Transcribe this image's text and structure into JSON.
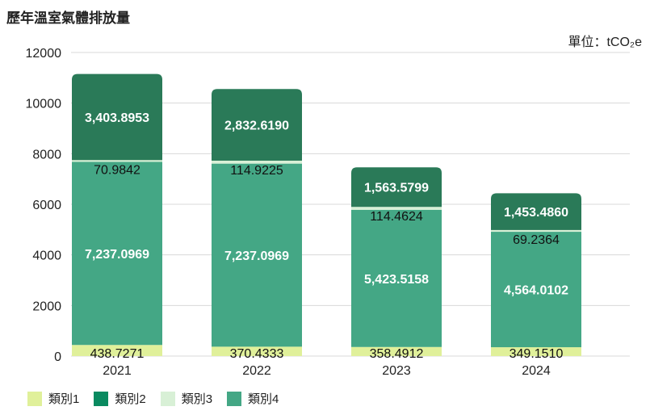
{
  "title": "歷年溫室氣體排放量",
  "unit_label": "單位：tCO₂e",
  "colors": {
    "類別1": "#e0f09a",
    "類別2": "#2a7a58",
    "類別2_legend": "#0a8a60",
    "類別3": "#d8f0d6",
    "類別4": "#44a785",
    "grid": "#d8d8d8",
    "label_light": "#ffffff",
    "label_dark": "#111111"
  },
  "legend": [
    {
      "name": "類別1",
      "color": "#e0f09a"
    },
    {
      "name": "類別2",
      "color": "#0a8a60"
    },
    {
      "name": "類別3",
      "color": "#d8f0d6"
    },
    {
      "name": "類別4",
      "color": "#44a785"
    }
  ],
  "chart_data": {
    "type": "bar",
    "stacked": true,
    "title": "歷年溫室氣體排放量",
    "xlabel": "",
    "ylabel": "",
    "ylim": [
      0,
      12000
    ],
    "yticks": [
      0,
      2000,
      4000,
      6000,
      8000,
      10000,
      12000
    ],
    "categories": [
      "2021",
      "2022",
      "2023",
      "2024"
    ],
    "series": [
      {
        "name": "類別1",
        "values": [
          438.7271,
          370.4333,
          358.4912,
          349.151
        ],
        "labels": [
          "438.7271",
          "370.4333",
          "358.4912",
          "349.1510"
        ]
      },
      {
        "name": "類別4",
        "values": [
          7237.0969,
          7237.0969,
          5423.5158,
          4564.0102
        ],
        "labels": [
          "7,237.0969",
          "7,237.0969",
          "5,423.5158",
          "4,564.0102"
        ]
      },
      {
        "name": "類別3",
        "values": [
          70.9842,
          114.9225,
          114.4624,
          69.2364
        ],
        "labels": [
          "70.9842",
          "114.9225",
          "114.4624",
          "69.2364"
        ]
      },
      {
        "name": "類別2",
        "values": [
          3403.8953,
          2832.619,
          1563.5799,
          1453.486
        ],
        "labels": [
          "3,403.8953",
          "2,832.6190",
          "1,563.5799",
          "1,453.4860"
        ]
      }
    ],
    "legend_position": "bottom-left",
    "grid": true
  }
}
